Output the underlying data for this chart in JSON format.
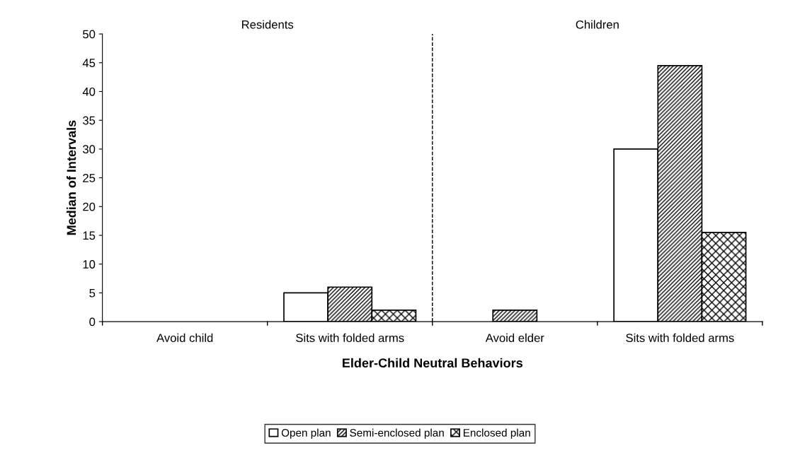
{
  "chart_data": {
    "type": "bar",
    "xlabel": "Elder-Child Neutral Behaviors",
    "ylabel": "Median of Intervals",
    "categories": [
      "Avoid child",
      "Sits with folded arms",
      "Avoid elder",
      "Sits with folded arms"
    ],
    "series": [
      {
        "name": "Open plan",
        "color": "#ffffff",
        "values": [
          0,
          5,
          0,
          30
        ]
      },
      {
        "name": "Semi-enclosed plan",
        "color": "#000000",
        "values": [
          0,
          6,
          2,
          44.5
        ]
      },
      {
        "name": "Enclosed plan",
        "color": "#000000",
        "values": [
          0,
          2,
          0,
          15.5
        ]
      }
    ],
    "ylim": [
      0,
      50
    ],
    "yticks": [
      0,
      5,
      10,
      15,
      20,
      25,
      30,
      35,
      40,
      45,
      50
    ],
    "annotations": [
      "Residents",
      "Children"
    ],
    "grid": false,
    "legend": "bottom"
  }
}
